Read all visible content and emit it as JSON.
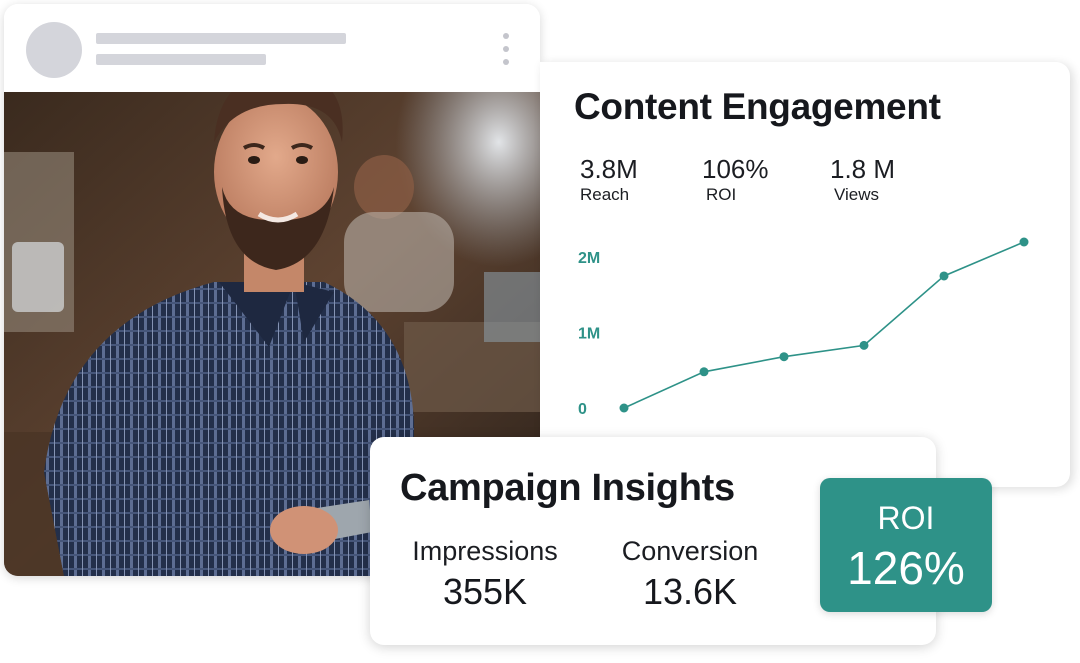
{
  "engagement": {
    "title": "Content Engagement",
    "metrics": [
      {
        "value": "3.8M",
        "label": "Reach"
      },
      {
        "value": "106%",
        "label": "ROI"
      },
      {
        "value": "1.8 M",
        "label": "Views"
      }
    ]
  },
  "chart_data": {
    "type": "line",
    "title": "",
    "xlabel": "",
    "ylabel": "",
    "y_tick_labels": [
      "0",
      "1M",
      "2M"
    ],
    "y_ticks": [
      0,
      1000000,
      2000000
    ],
    "ylim": [
      0,
      2200000
    ],
    "x": [
      1,
      2,
      3,
      4,
      5,
      6
    ],
    "series": [
      {
        "values": [
          0,
          480000,
          680000,
          830000,
          1750000,
          2200000
        ]
      }
    ],
    "grid": false,
    "colors": {
      "line": "#2e9288",
      "tick_text": "#2e9288"
    }
  },
  "campaign": {
    "title": "Campaign Insights",
    "stats": [
      {
        "label": "Impressions",
        "value": "355K"
      },
      {
        "label": "Conversion",
        "value": "13.6K"
      }
    ],
    "roi": {
      "label": "ROI",
      "value": "126%"
    }
  },
  "colors": {
    "accent": "#2e9288",
    "skeleton": "#d4d5db",
    "text": "#16181d"
  },
  "icons": {
    "post_menu": "more-vertical-icon"
  }
}
